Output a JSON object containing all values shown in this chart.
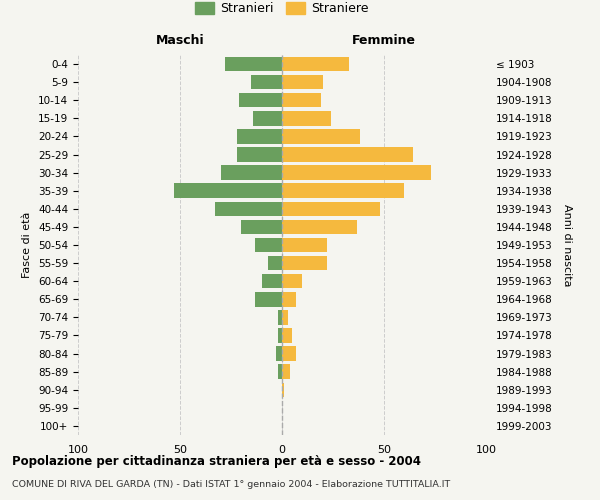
{
  "age_groups": [
    "0-4",
    "5-9",
    "10-14",
    "15-19",
    "20-24",
    "25-29",
    "30-34",
    "35-39",
    "40-44",
    "45-49",
    "50-54",
    "55-59",
    "60-64",
    "65-69",
    "70-74",
    "75-79",
    "80-84",
    "85-89",
    "90-94",
    "95-99",
    "100+"
  ],
  "birth_years": [
    "1999-2003",
    "1994-1998",
    "1989-1993",
    "1984-1988",
    "1979-1983",
    "1974-1978",
    "1969-1973",
    "1964-1968",
    "1959-1963",
    "1954-1958",
    "1949-1953",
    "1944-1948",
    "1939-1943",
    "1934-1938",
    "1929-1933",
    "1924-1928",
    "1919-1923",
    "1914-1918",
    "1909-1913",
    "1904-1908",
    "≤ 1903"
  ],
  "maschi": [
    28,
    15,
    21,
    14,
    22,
    22,
    30,
    53,
    33,
    20,
    13,
    7,
    10,
    13,
    2,
    2,
    3,
    2,
    0,
    0,
    0
  ],
  "femmine": [
    33,
    20,
    19,
    24,
    38,
    64,
    73,
    60,
    48,
    37,
    22,
    22,
    10,
    7,
    3,
    5,
    7,
    4,
    1,
    0,
    0
  ],
  "male_color": "#6a9f5e",
  "female_color": "#f5b93e",
  "background_color": "#f5f5f0",
  "grid_color": "#cccccc",
  "title": "Popolazione per cittadinanza straniera per età e sesso - 2004",
  "subtitle": "COMUNE DI RIVA DEL GARDA (TN) - Dati ISTAT 1° gennaio 2004 - Elaborazione TUTTITALIA.IT",
  "xlabel_left": "Maschi",
  "xlabel_right": "Femmine",
  "ylabel_left": "Fasce di età",
  "ylabel_right": "Anni di nascita",
  "legend_male": "Stranieri",
  "legend_female": "Straniere",
  "xlim": 100,
  "bar_height": 0.8
}
